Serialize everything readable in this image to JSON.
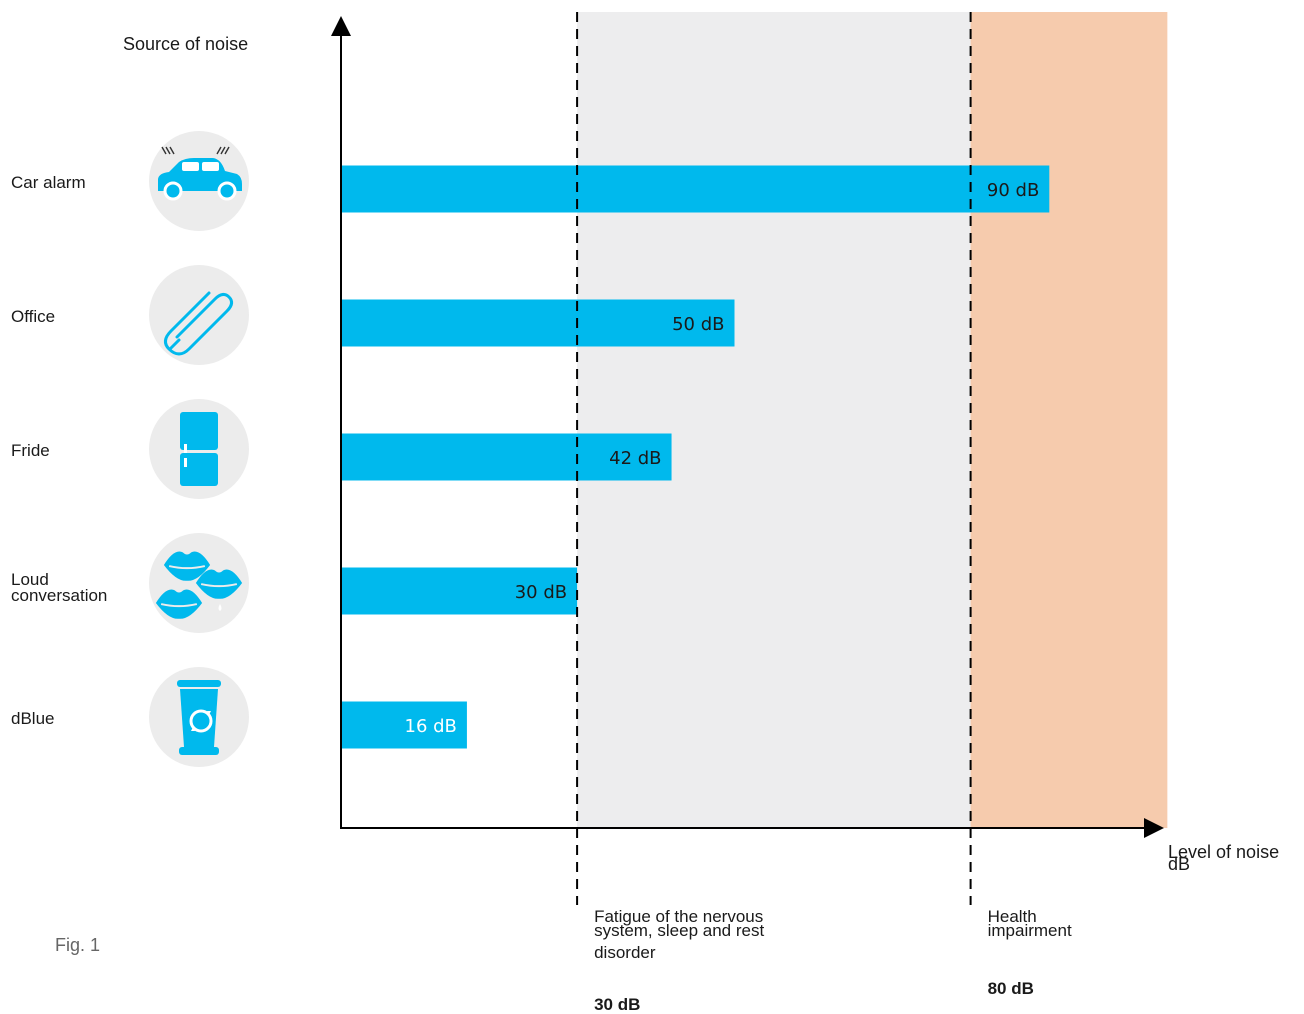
{
  "chart_data": {
    "type": "bar",
    "orientation": "horizontal",
    "categories": [
      "Car alarm",
      "Office",
      "Fride",
      "Loud conversation",
      "dBlue"
    ],
    "category_lines": [
      [
        "Car alarm"
      ],
      [
        "Office"
      ],
      [
        "Fride"
      ],
      [
        "Loud",
        "conversation"
      ],
      [
        "dBlue"
      ]
    ],
    "values": [
      90,
      50,
      42,
      30,
      16
    ],
    "value_labels": [
      "90 dB",
      "50 dB",
      "42 dB",
      "30 dB",
      "16 dB"
    ],
    "icons": [
      "car-alarm-icon",
      "paperclip-icon",
      "fridge-icon",
      "lips-icon",
      "dblue-device-icon"
    ],
    "ylabel": "Source of noise",
    "xlabel_lines": [
      "Level of noise",
      "dB"
    ],
    "xlim": [
      0,
      105
    ],
    "thresholds": [
      {
        "value": 30,
        "label_lines": [
          "Fatigue of the nervous",
          "system, sleep and rest",
          "disorder"
        ],
        "value_label": "30 dB",
        "color": "#ededee"
      },
      {
        "value": 80,
        "label_lines": [
          "Health",
          "impairment"
        ],
        "value_label": "80 dB",
        "color": "#f6cbad"
      }
    ],
    "bar_color": "#00b9ed",
    "icon_bg_color": "#ececec",
    "grid": false
  },
  "figure_label": "Fig. 1"
}
